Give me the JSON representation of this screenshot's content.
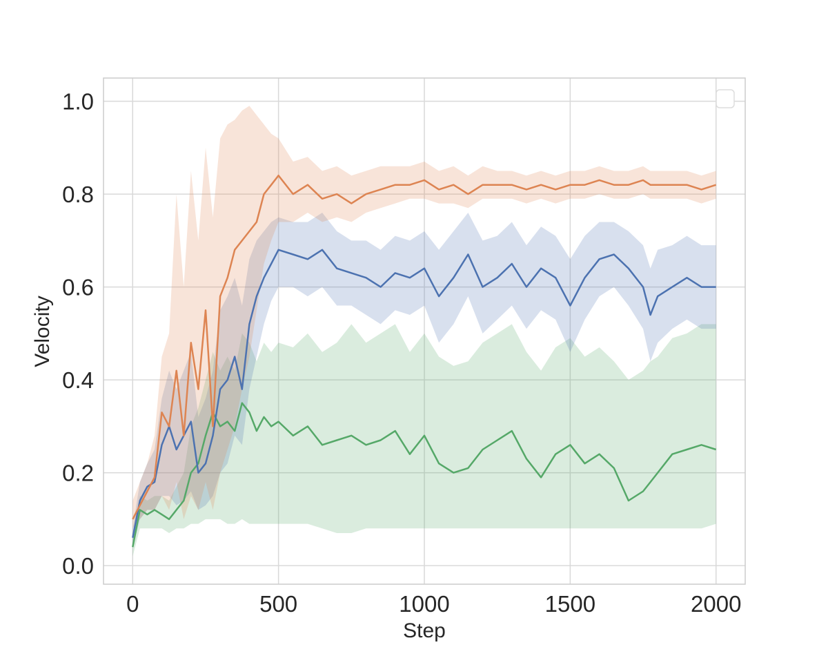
{
  "chart_data": {
    "type": "line",
    "title": "",
    "xlabel": "Step",
    "ylabel": "Velocity",
    "xlim": [
      -100,
      2100
    ],
    "ylim": [
      -0.04,
      1.05
    ],
    "xticks": [
      0,
      500,
      1000,
      1500,
      2000
    ],
    "xtick_labels": [
      "0",
      "500",
      "1000",
      "1500",
      "2000"
    ],
    "yticks": [
      0.0,
      0.2,
      0.4,
      0.6,
      0.8,
      1.0
    ],
    "ytick_labels": [
      "0.0",
      "0.2",
      "0.4",
      "0.6",
      "0.8",
      "1.0"
    ],
    "grid": true,
    "legend": {
      "placement": "top-right",
      "entries": []
    },
    "shaded_band": "variance band around each series",
    "x": [
      0,
      25,
      50,
      75,
      100,
      125,
      150,
      175,
      200,
      225,
      250,
      275,
      300,
      325,
      350,
      375,
      400,
      425,
      450,
      475,
      500,
      550,
      600,
      650,
      700,
      750,
      800,
      850,
      900,
      950,
      1000,
      1050,
      1100,
      1150,
      1200,
      1250,
      1300,
      1350,
      1400,
      1450,
      1500,
      1550,
      1600,
      1650,
      1700,
      1750,
      1775,
      1800,
      1850,
      1900,
      1950,
      2000
    ],
    "series": [
      {
        "color": "#dd8452",
        "values": [
          0.1,
          0.13,
          0.16,
          0.19,
          0.33,
          0.3,
          0.42,
          0.28,
          0.48,
          0.38,
          0.55,
          0.3,
          0.58,
          0.62,
          0.68,
          0.7,
          0.72,
          0.74,
          0.8,
          0.82,
          0.84,
          0.8,
          0.82,
          0.79,
          0.8,
          0.78,
          0.8,
          0.81,
          0.82,
          0.82,
          0.83,
          0.81,
          0.82,
          0.8,
          0.82,
          0.82,
          0.82,
          0.81,
          0.82,
          0.81,
          0.82,
          0.82,
          0.83,
          0.82,
          0.82,
          0.83,
          0.82,
          0.82,
          0.82,
          0.82,
          0.81,
          0.82
        ],
        "lower": [
          0.08,
          0.1,
          0.12,
          0.12,
          0.15,
          0.12,
          0.18,
          0.1,
          0.15,
          0.12,
          0.18,
          0.12,
          0.2,
          0.25,
          0.3,
          0.38,
          0.45,
          0.55,
          0.65,
          0.7,
          0.74,
          0.74,
          0.76,
          0.74,
          0.75,
          0.74,
          0.76,
          0.77,
          0.78,
          0.79,
          0.79,
          0.78,
          0.78,
          0.77,
          0.79,
          0.79,
          0.79,
          0.78,
          0.79,
          0.78,
          0.79,
          0.79,
          0.8,
          0.79,
          0.79,
          0.8,
          0.79,
          0.79,
          0.79,
          0.79,
          0.78,
          0.79
        ],
        "upper": [
          0.14,
          0.18,
          0.22,
          0.28,
          0.45,
          0.5,
          0.8,
          0.6,
          0.85,
          0.7,
          0.9,
          0.75,
          0.92,
          0.95,
          0.96,
          0.98,
          0.99,
          0.97,
          0.95,
          0.93,
          0.92,
          0.87,
          0.88,
          0.85,
          0.86,
          0.84,
          0.85,
          0.86,
          0.86,
          0.86,
          0.87,
          0.85,
          0.86,
          0.84,
          0.86,
          0.85,
          0.85,
          0.84,
          0.85,
          0.84,
          0.85,
          0.85,
          0.86,
          0.85,
          0.85,
          0.86,
          0.85,
          0.85,
          0.85,
          0.85,
          0.84,
          0.85
        ]
      },
      {
        "color": "#4c72b0",
        "values": [
          0.06,
          0.14,
          0.17,
          0.18,
          0.26,
          0.3,
          0.25,
          0.28,
          0.31,
          0.2,
          0.22,
          0.28,
          0.38,
          0.4,
          0.45,
          0.38,
          0.52,
          0.58,
          0.62,
          0.65,
          0.68,
          0.67,
          0.66,
          0.68,
          0.64,
          0.63,
          0.62,
          0.6,
          0.63,
          0.62,
          0.64,
          0.58,
          0.62,
          0.67,
          0.6,
          0.62,
          0.65,
          0.6,
          0.64,
          0.62,
          0.56,
          0.62,
          0.66,
          0.67,
          0.64,
          0.6,
          0.54,
          0.58,
          0.6,
          0.62,
          0.6,
          0.6
        ],
        "lower": [
          0.04,
          0.1,
          0.12,
          0.12,
          0.15,
          0.15,
          0.13,
          0.14,
          0.16,
          0.12,
          0.13,
          0.15,
          0.2,
          0.22,
          0.28,
          0.26,
          0.38,
          0.45,
          0.52,
          0.57,
          0.6,
          0.6,
          0.58,
          0.6,
          0.56,
          0.56,
          0.54,
          0.52,
          0.55,
          0.54,
          0.56,
          0.48,
          0.52,
          0.58,
          0.5,
          0.53,
          0.56,
          0.51,
          0.55,
          0.53,
          0.46,
          0.53,
          0.58,
          0.6,
          0.56,
          0.51,
          0.44,
          0.48,
          0.51,
          0.53,
          0.51,
          0.51
        ],
        "upper": [
          0.08,
          0.18,
          0.22,
          0.25,
          0.36,
          0.42,
          0.38,
          0.42,
          0.46,
          0.32,
          0.36,
          0.42,
          0.55,
          0.58,
          0.62,
          0.56,
          0.66,
          0.7,
          0.72,
          0.74,
          0.75,
          0.74,
          0.74,
          0.76,
          0.72,
          0.7,
          0.7,
          0.68,
          0.71,
          0.7,
          0.72,
          0.68,
          0.72,
          0.76,
          0.7,
          0.71,
          0.74,
          0.69,
          0.73,
          0.71,
          0.66,
          0.71,
          0.74,
          0.74,
          0.72,
          0.69,
          0.64,
          0.68,
          0.69,
          0.71,
          0.69,
          0.69
        ]
      },
      {
        "color": "#55a868",
        "values": [
          0.04,
          0.12,
          0.11,
          0.12,
          0.11,
          0.1,
          0.12,
          0.14,
          0.2,
          0.22,
          0.28,
          0.33,
          0.3,
          0.31,
          0.29,
          0.35,
          0.33,
          0.29,
          0.32,
          0.3,
          0.31,
          0.28,
          0.3,
          0.26,
          0.27,
          0.28,
          0.26,
          0.27,
          0.29,
          0.24,
          0.28,
          0.22,
          0.2,
          0.21,
          0.25,
          0.27,
          0.29,
          0.23,
          0.19,
          0.24,
          0.26,
          0.22,
          0.24,
          0.21,
          0.14,
          0.16,
          0.18,
          0.2,
          0.24,
          0.25,
          0.26,
          0.25
        ],
        "lower": [
          0.02,
          0.08,
          0.08,
          0.08,
          0.08,
          0.07,
          0.08,
          0.08,
          0.09,
          0.09,
          0.1,
          0.1,
          0.1,
          0.09,
          0.09,
          0.1,
          0.09,
          0.09,
          0.09,
          0.09,
          0.09,
          0.09,
          0.09,
          0.08,
          0.07,
          0.07,
          0.08,
          0.08,
          0.08,
          0.08,
          0.08,
          0.08,
          0.08,
          0.08,
          0.08,
          0.08,
          0.08,
          0.08,
          0.08,
          0.08,
          0.08,
          0.08,
          0.08,
          0.08,
          0.08,
          0.08,
          0.08,
          0.08,
          0.08,
          0.08,
          0.08,
          0.09
        ],
        "upper": [
          0.06,
          0.15,
          0.14,
          0.15,
          0.15,
          0.14,
          0.17,
          0.2,
          0.3,
          0.34,
          0.4,
          0.46,
          0.42,
          0.45,
          0.42,
          0.5,
          0.48,
          0.44,
          0.48,
          0.46,
          0.48,
          0.47,
          0.5,
          0.46,
          0.48,
          0.52,
          0.48,
          0.5,
          0.52,
          0.46,
          0.5,
          0.45,
          0.43,
          0.44,
          0.48,
          0.5,
          0.52,
          0.46,
          0.42,
          0.47,
          0.49,
          0.45,
          0.47,
          0.44,
          0.4,
          0.42,
          0.44,
          0.45,
          0.49,
          0.5,
          0.52,
          0.52
        ]
      }
    ]
  }
}
